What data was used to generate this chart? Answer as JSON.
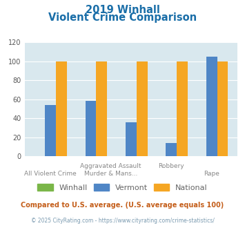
{
  "title_line1": "2019 Winhall",
  "title_line2": "Violent Crime Comparison",
  "categories5": [
    "All Violent Crime",
    "Aggravated Assault",
    "Murder & Mans...",
    "Robbery",
    "Rape"
  ],
  "vermont5": [
    54,
    58,
    36,
    14,
    105
  ],
  "winhall5": [
    0,
    0,
    0,
    0,
    0
  ],
  "national5": [
    100,
    100,
    100,
    100,
    100
  ],
  "colors_winhall": "#7ab648",
  "colors_vermont": "#4f86c6",
  "colors_national": "#f5a623",
  "ylim": [
    0,
    120
  ],
  "yticks": [
    0,
    20,
    40,
    60,
    80,
    100,
    120
  ],
  "title_color": "#1a6ea8",
  "bg_color": "#d9e8ee",
  "footnote": "Compared to U.S. average. (U.S. average equals 100)",
  "footnote2": "© 2025 CityRating.com - https://www.cityrating.com/crime-statistics/",
  "footnote_color": "#c45e1a",
  "footnote2_color": "#7a9ab0",
  "legend_label_color": "#666666",
  "xtop_labels": [
    "",
    "Aggravated Assault",
    "",
    "Robbery",
    ""
  ],
  "xbot_labels": [
    "All Violent Crime",
    "",
    "Murder & Mans...",
    "",
    "Rape"
  ],
  "bar_width": 0.27
}
